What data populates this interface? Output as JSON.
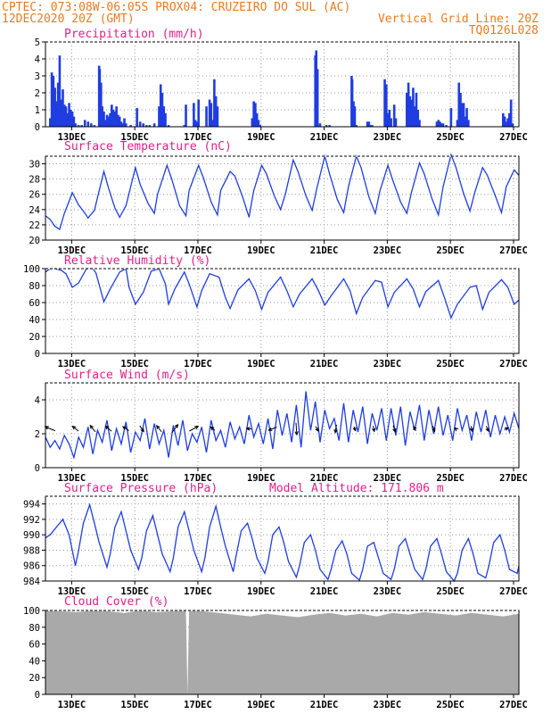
{
  "header": {
    "line1": "CPTEC:   073:08W-06:05S   PROX04: CRUZEIRO DO SUL (AC)",
    "line2_left": "12DEC2020 20Z (GMT)",
    "line2_right": "Vertical Grid Line: 20Z",
    "line3_right": "TQ0126L028"
  },
  "colors": {
    "header_text": "#e87b1e",
    "panel_title": "#e0208a",
    "series_line": "#1f3de0",
    "precip_bar": "#1f3de0",
    "cloud_fill": "#a9a9a9",
    "grid": "#9a9a9a",
    "wind_arrow": "#000000"
  },
  "x_axis": {
    "day_labels": [
      "13DEC",
      "15DEC",
      "17DEC",
      "19DEC",
      "21DEC",
      "23DEC",
      "25DEC",
      "27DEC"
    ],
    "range_days": [
      0,
      15
    ],
    "label_day_offsets": [
      0.83,
      2.83,
      4.83,
      6.83,
      8.83,
      10.83,
      12.83,
      14.83
    ]
  },
  "chart_data": [
    {
      "type": "bar",
      "title": "Precipitation (mm/h)",
      "ylim": [
        0,
        5
      ],
      "yticks": [
        0,
        1,
        2,
        3,
        4,
        5
      ],
      "grid": true,
      "x": [
        0.15,
        0.2,
        0.25,
        0.3,
        0.35,
        0.4,
        0.45,
        0.5,
        0.55,
        0.6,
        0.65,
        0.7,
        0.75,
        0.8,
        0.85,
        0.9,
        0.95,
        1.05,
        1.15,
        1.25,
        1.35,
        1.45,
        1.55,
        1.7,
        1.72,
        1.76,
        1.8,
        1.85,
        1.9,
        1.95,
        2.0,
        2.05,
        2.1,
        2.15,
        2.2,
        2.25,
        2.3,
        2.35,
        2.4,
        2.45,
        2.5,
        2.55,
        2.7,
        2.9,
        3.0,
        3.1,
        3.2,
        3.3,
        3.45,
        3.6,
        3.65,
        3.7,
        3.75,
        3.8,
        3.9,
        4.4,
        4.45,
        4.7,
        4.75,
        4.8,
        4.85,
        5.1,
        5.2,
        5.25,
        5.3,
        5.35,
        5.4,
        5.45,
        6.55,
        6.6,
        6.65,
        6.7,
        6.75,
        6.8,
        8.55,
        8.58,
        8.62,
        8.7,
        8.9,
        9.0,
        9.7,
        9.72,
        9.76,
        9.8,
        9.85,
        10.2,
        10.25,
        10.3,
        10.35,
        10.75,
        10.8,
        10.85,
        10.9,
        10.95,
        11.05,
        11.1,
        11.45,
        11.5,
        11.55,
        11.6,
        11.65,
        11.7,
        11.75,
        11.8,
        11.85,
        12.4,
        12.45,
        12.5,
        12.55,
        12.6,
        12.7,
        12.85,
        13.05,
        13.1,
        13.15,
        13.2,
        13.25,
        13.3,
        13.35,
        13.4,
        14.5,
        14.55,
        14.6,
        14.65,
        14.7,
        14.75,
        14.8
      ],
      "values": [
        0.5,
        3.2,
        3.0,
        2.3,
        1.5,
        2.6,
        4.2,
        1.6,
        2.2,
        1.3,
        1.2,
        0.8,
        1.4,
        1.0,
        0.9,
        0.6,
        0.2,
        0.1,
        0.1,
        0.4,
        0.3,
        0.2,
        0.1,
        3.6,
        3.4,
        2.6,
        1.2,
        0.9,
        0.4,
        0.7,
        0.6,
        0.8,
        1.3,
        1.0,
        0.9,
        1.2,
        0.7,
        0.6,
        0.3,
        0.2,
        0.5,
        0.2,
        0.1,
        1.1,
        0.3,
        0.2,
        0.1,
        0.1,
        0.2,
        1.2,
        2.5,
        2.0,
        1.2,
        0.8,
        0.1,
        0.1,
        1.3,
        1.4,
        0.4,
        0.3,
        1.6,
        1.2,
        1.6,
        1.4,
        0.4,
        2.8,
        1.8,
        1.2,
        0.5,
        1.5,
        1.4,
        0.8,
        0.4,
        0.1,
        4.2,
        4.5,
        3.4,
        0.2,
        0.1,
        0.1,
        3.0,
        2.8,
        1.5,
        1.2,
        0.1,
        0.3,
        0.3,
        0.1,
        0.1,
        2.8,
        2.5,
        0.8,
        1.0,
        0.5,
        1.3,
        0.5,
        2.0,
        2.6,
        1.8,
        1.6,
        2.3,
        1.2,
        2.0,
        1.0,
        0.4,
        0.3,
        0.4,
        0.3,
        0.2,
        0.2,
        0.1,
        1.1,
        0.4,
        2.6,
        2.0,
        1.4,
        1.4,
        0.6,
        1.1,
        0.4,
        0.8,
        0.6,
        0.3,
        0.5,
        0.8,
        1.6,
        0.2
      ]
    },
    {
      "type": "line",
      "title": "Surface Temperature (nC)",
      "ylim": [
        20,
        31
      ],
      "yticks": [
        20,
        22,
        24,
        26,
        28,
        30
      ],
      "grid": true,
      "x": [
        0.0,
        0.15,
        0.3,
        0.45,
        0.6,
        0.85,
        1.05,
        1.2,
        1.35,
        1.55,
        1.85,
        2.0,
        2.2,
        2.35,
        2.55,
        2.85,
        3.0,
        3.25,
        3.45,
        3.55,
        3.85,
        4.0,
        4.25,
        4.45,
        4.55,
        4.85,
        5.0,
        5.25,
        5.45,
        5.55,
        5.85,
        6.0,
        6.25,
        6.45,
        6.6,
        6.85,
        7.0,
        7.25,
        7.45,
        7.6,
        7.85,
        8.0,
        8.25,
        8.45,
        8.6,
        8.85,
        9.0,
        9.25,
        9.45,
        9.6,
        9.85,
        10.0,
        10.25,
        10.45,
        10.6,
        10.85,
        11.0,
        11.25,
        11.45,
        11.6,
        11.85,
        12.0,
        12.25,
        12.45,
        12.6,
        12.85,
        13.0,
        13.25,
        13.45,
        13.6,
        13.85,
        14.0,
        14.25,
        14.45,
        14.6,
        14.85,
        15.0
      ],
      "values": [
        23.2,
        22.7,
        21.8,
        21.4,
        23.5,
        26.2,
        24.6,
        23.8,
        22.9,
        23.9,
        29.0,
        26.8,
        24.2,
        23.0,
        24.5,
        29.5,
        27.3,
        24.8,
        23.5,
        26.0,
        29.8,
        28.0,
        24.5,
        23.2,
        26.5,
        29.8,
        28.2,
        25.0,
        23.3,
        26.5,
        29.0,
        28.4,
        25.6,
        23.0,
        26.5,
        29.8,
        28.7,
        25.8,
        24.0,
        26.0,
        30.5,
        29.0,
        25.8,
        23.9,
        26.8,
        31.0,
        28.7,
        25.3,
        23.6,
        27.0,
        31.0,
        29.5,
        25.6,
        23.5,
        26.5,
        29.8,
        27.9,
        25.0,
        23.5,
        26.3,
        30.1,
        28.7,
        25.4,
        23.3,
        27.0,
        31.2,
        29.6,
        26.1,
        23.8,
        26.2,
        29.5,
        28.5,
        25.8,
        23.6,
        27.0,
        29.2,
        28.5
      ]
    },
    {
      "type": "line",
      "title": "Relative Humidity (%)",
      "ylim": [
        0,
        100
      ],
      "yticks": [
        0,
        20,
        40,
        60,
        80,
        100
      ],
      "grid": true,
      "x": [
        0.0,
        0.15,
        0.3,
        0.5,
        0.65,
        0.85,
        1.05,
        1.3,
        1.5,
        1.6,
        1.85,
        2.05,
        2.35,
        2.55,
        2.65,
        2.85,
        3.1,
        3.35,
        3.6,
        3.8,
        3.9,
        4.1,
        4.4,
        4.55,
        4.8,
        4.95,
        5.2,
        5.5,
        5.7,
        5.85,
        6.1,
        6.45,
        6.65,
        6.85,
        7.05,
        7.45,
        7.65,
        7.85,
        8.05,
        8.45,
        8.65,
        8.85,
        9.05,
        9.45,
        9.65,
        9.85,
        10.05,
        10.45,
        10.65,
        10.85,
        11.05,
        11.45,
        11.65,
        11.85,
        12.05,
        12.45,
        12.65,
        12.85,
        13.05,
        13.45,
        13.65,
        13.85,
        14.05,
        14.45,
        14.65,
        14.85,
        15.0
      ],
      "values": [
        96,
        100,
        100,
        98,
        94,
        78,
        83,
        100,
        100,
        95,
        61,
        76,
        96,
        100,
        78,
        58,
        72,
        97,
        100,
        82,
        58,
        76,
        96,
        82,
        55,
        74,
        94,
        90,
        66,
        53,
        75,
        88,
        74,
        52,
        72,
        90,
        74,
        55,
        70,
        88,
        74,
        57,
        68,
        88,
        74,
        47,
        66,
        86,
        84,
        55,
        72,
        88,
        76,
        55,
        73,
        86,
        65,
        42,
        58,
        78,
        80,
        52,
        72,
        87,
        78,
        58,
        63
      ]
    },
    {
      "type": "line",
      "title": "Surface Wind (m/s)",
      "ylim": [
        0,
        5
      ],
      "yticks": [
        0,
        2,
        4
      ],
      "grid": true,
      "x": [
        0.0,
        0.15,
        0.3,
        0.45,
        0.6,
        0.75,
        0.9,
        1.05,
        1.2,
        1.35,
        1.5,
        1.65,
        1.8,
        1.95,
        2.1,
        2.25,
        2.4,
        2.55,
        2.7,
        2.85,
        3.0,
        3.15,
        3.3,
        3.45,
        3.6,
        3.75,
        3.9,
        4.05,
        4.2,
        4.35,
        4.5,
        4.65,
        4.8,
        4.95,
        5.1,
        5.25,
        5.4,
        5.55,
        5.7,
        5.85,
        6.0,
        6.15,
        6.3,
        6.45,
        6.6,
        6.75,
        6.9,
        7.05,
        7.2,
        7.35,
        7.5,
        7.65,
        7.8,
        7.95,
        8.1,
        8.25,
        8.4,
        8.55,
        8.7,
        8.85,
        9.0,
        9.15,
        9.3,
        9.45,
        9.6,
        9.75,
        9.9,
        10.05,
        10.2,
        10.35,
        10.5,
        10.65,
        10.8,
        10.95,
        11.1,
        11.25,
        11.4,
        11.55,
        11.7,
        11.85,
        12.0,
        12.15,
        12.3,
        12.45,
        12.6,
        12.75,
        12.9,
        13.05,
        13.2,
        13.35,
        13.5,
        13.65,
        13.8,
        13.95,
        14.1,
        14.25,
        14.4,
        14.55,
        14.7,
        14.85,
        15.0
      ],
      "values": [
        1.8,
        1.2,
        1.6,
        1.1,
        1.9,
        1.4,
        0.6,
        1.8,
        1.2,
        2.4,
        0.8,
        2.2,
        1.5,
        2.8,
        1.0,
        2.3,
        1.4,
        2.7,
        0.9,
        2.1,
        1.6,
        2.9,
        1.1,
        2.6,
        1.4,
        2.2,
        0.6,
        2.5,
        1.3,
        2.8,
        1.0,
        2.0,
        1.5,
        2.4,
        0.9,
        2.8,
        1.6,
        2.2,
        1.2,
        2.7,
        1.7,
        2.4,
        1.4,
        3.1,
        1.8,
        2.6,
        1.4,
        2.9,
        1.1,
        3.4,
        1.9,
        3.2,
        1.5,
        3.7,
        1.2,
        4.5,
        2.2,
        3.9,
        1.5,
        3.4,
        2.3,
        2.9,
        1.6,
        3.8,
        1.5,
        3.4,
        2.1,
        3.6,
        1.4,
        3.2,
        2.2,
        3.5,
        1.6,
        3.5,
        1.9,
        3.6,
        1.3,
        3.3,
        2.2,
        3.7,
        1.6,
        3.4,
        2.0,
        3.6,
        1.9,
        3.1,
        1.6,
        3.5,
        2.2,
        3.1,
        1.6,
        3.3,
        2.1,
        3.4,
        1.8,
        3.1,
        2.0,
        3.0,
        2.1,
        3.2,
        2.3
      ],
      "arrows": {
        "day": [
          0.15,
          0.95,
          1.5,
          2.0,
          2.55,
          3.05,
          3.6,
          4.1,
          4.7,
          5.3,
          6.45,
          7.2,
          7.95,
          8.6,
          9.2,
          9.8,
          10.4,
          11.05,
          11.7,
          12.3,
          13.0,
          13.5,
          14.0,
          14.6
        ],
        "u": [
          -2.5,
          -1.5,
          -1.3,
          -1.5,
          -1.5,
          1.0,
          -1.2,
          1.5,
          2.2,
          -1.0,
          -1.2,
          -2.0,
          0.2,
          0.7,
          -0.3,
          0.4,
          0.3,
          0.5,
          -0.6,
          0.5,
          -0.4,
          0.3,
          0.6,
          1.0
        ],
        "v": [
          1.0,
          1.2,
          1.6,
          1.3,
          1.0,
          -1.5,
          1.5,
          2.0,
          1.2,
          0.8,
          0.2,
          -0.8,
          -3.0,
          -1.2,
          -2.0,
          -1.0,
          -1.4,
          -1.6,
          1.0,
          -1.4,
          0.4,
          -1.3,
          -1.3,
          0.5
        ]
      }
    },
    {
      "type": "line",
      "title": "Surface Pressure (hPa)",
      "annotation": "Model Altitude: 171.806 m",
      "ylim": [
        984,
        995
      ],
      "yticks": [
        984,
        986,
        988,
        990,
        992,
        994
      ],
      "grid": true,
      "x": [
        0.0,
        0.15,
        0.35,
        0.55,
        0.75,
        0.95,
        1.05,
        1.2,
        1.4,
        1.55,
        1.7,
        1.95,
        2.05,
        2.2,
        2.4,
        2.55,
        2.7,
        2.95,
        3.05,
        3.2,
        3.4,
        3.55,
        3.7,
        3.95,
        4.05,
        4.2,
        4.4,
        4.55,
        4.7,
        4.95,
        5.05,
        5.2,
        5.4,
        5.55,
        5.7,
        5.95,
        6.05,
        6.2,
        6.4,
        6.55,
        6.7,
        6.95,
        7.05,
        7.2,
        7.4,
        7.55,
        7.7,
        7.95,
        8.05,
        8.2,
        8.4,
        8.55,
        8.7,
        8.95,
        9.05,
        9.2,
        9.4,
        9.55,
        9.7,
        9.95,
        10.05,
        10.2,
        10.4,
        10.55,
        10.7,
        10.95,
        11.05,
        11.2,
        11.4,
        11.55,
        11.7,
        11.95,
        12.05,
        12.2,
        12.4,
        12.55,
        12.7,
        12.95,
        13.05,
        13.2,
        13.4,
        13.55,
        13.7,
        13.95,
        14.05,
        14.2,
        14.4,
        14.55,
        14.7,
        14.95,
        15.0
      ],
      "values": [
        989.6,
        990.0,
        991.0,
        992.0,
        990.0,
        986.0,
        988.0,
        991.5,
        993.9,
        991.5,
        989.0,
        985.8,
        987.5,
        991.0,
        993.0,
        990.5,
        988.0,
        985.5,
        987.0,
        990.5,
        992.5,
        990.0,
        987.5,
        985.2,
        987.0,
        991.0,
        993.0,
        990.5,
        988.0,
        985.2,
        987.0,
        991.0,
        993.7,
        991.0,
        988.5,
        985.2,
        987.5,
        990.5,
        991.5,
        989.5,
        987.0,
        985.0,
        986.5,
        990.0,
        991.0,
        989.0,
        986.5,
        984.5,
        986.0,
        989.0,
        990.0,
        988.0,
        985.5,
        984.2,
        985.5,
        988.0,
        989.2,
        987.5,
        985.0,
        984.1,
        985.5,
        988.5,
        989.0,
        987.0,
        985.0,
        984.2,
        985.5,
        988.5,
        989.5,
        987.5,
        985.5,
        984.2,
        985.5,
        988.5,
        989.5,
        987.5,
        985.2,
        984.0,
        985.0,
        988.0,
        989.5,
        987.5,
        985.0,
        984.4,
        986.0,
        989.0,
        990.0,
        988.0,
        985.5,
        985.0,
        986.0
      ]
    },
    {
      "type": "area",
      "title": "Cloud Cover (%)",
      "ylim": [
        0,
        100
      ],
      "yticks": [
        0,
        20,
        40,
        60,
        80,
        100
      ],
      "grid": true,
      "x": [
        0.0,
        0.5,
        1.0,
        1.5,
        2.0,
        2.5,
        3.0,
        3.5,
        4.0,
        4.45,
        4.5,
        4.55,
        5.0,
        5.5,
        6.0,
        6.5,
        7.0,
        7.5,
        8.0,
        8.5,
        9.0,
        9.5,
        10.0,
        10.5,
        11.0,
        11.5,
        12.0,
        12.5,
        13.0,
        13.5,
        14.0,
        14.5,
        15.0
      ],
      "values": [
        100,
        99,
        98,
        100,
        99,
        97,
        100,
        98,
        99,
        100,
        0,
        100,
        99,
        97,
        95,
        93,
        96,
        94,
        92,
        95,
        97,
        94,
        96,
        93,
        97,
        95,
        98,
        96,
        94,
        97,
        95,
        93,
        96
      ]
    }
  ]
}
